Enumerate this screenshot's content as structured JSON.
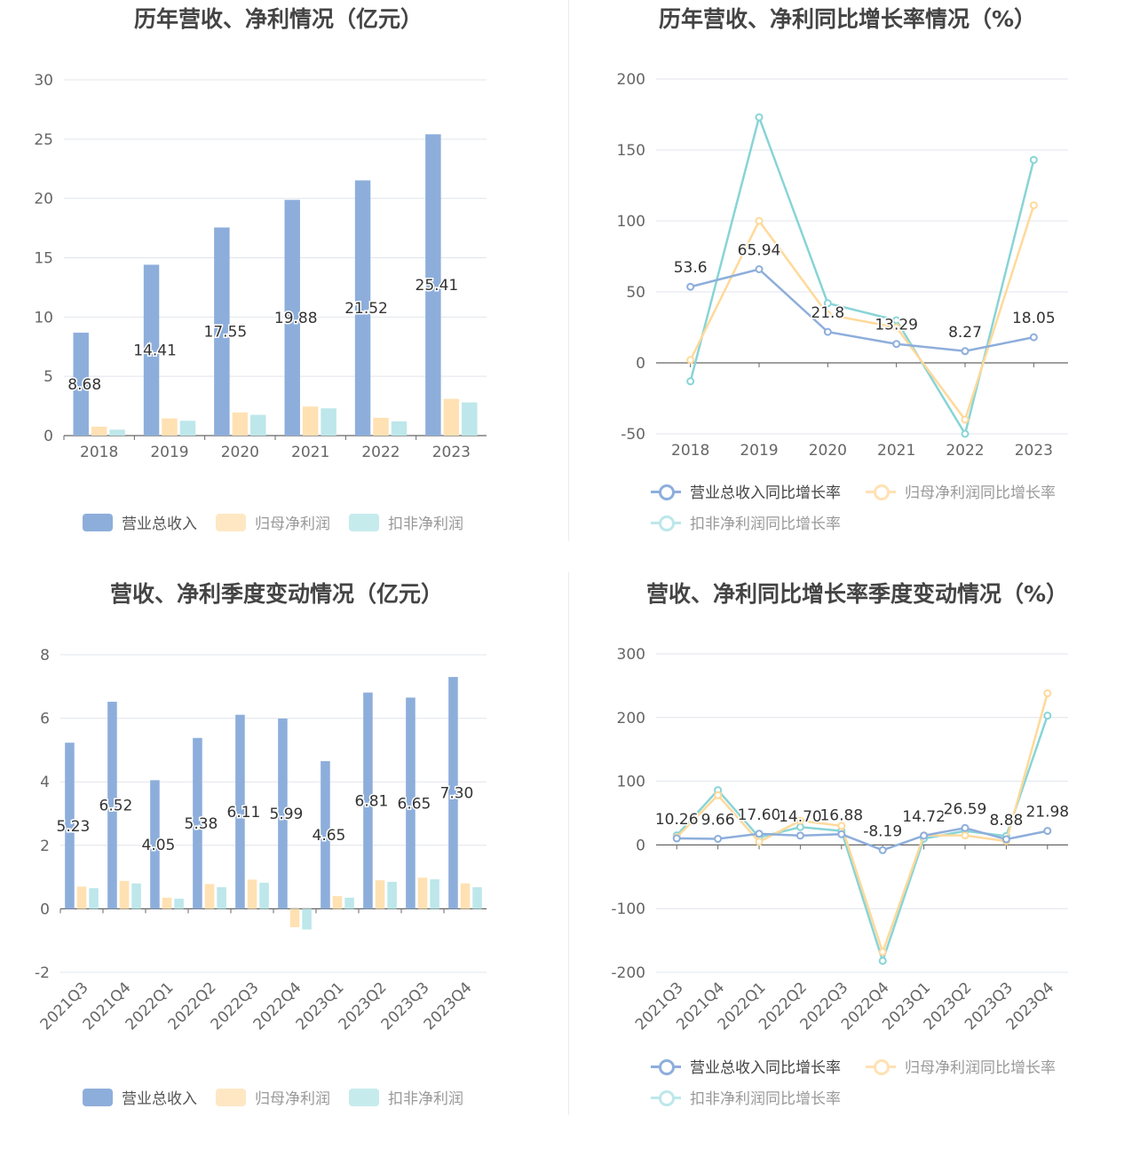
{
  "colors": {
    "revenue": "#8DAEDB",
    "net_profit": "#FFE1B3",
    "deducted_profit": "#BDE7EA",
    "revenue_line": "#8DAEDB",
    "net_line": "#FFD99A",
    "deducted_line": "#88D4D6"
  },
  "legend_bar": [
    "营业总收入",
    "归母净利润",
    "扣非净利润"
  ],
  "legend_line": [
    "营业总收入同比增长率",
    "归母净利润同比增长率",
    "扣非净利润同比增长率"
  ],
  "chart_data": [
    {
      "id": "annual_amount",
      "type": "bar",
      "title": "历年营收、净利情况（亿元）",
      "categories": [
        "2018",
        "2019",
        "2020",
        "2021",
        "2022",
        "2023"
      ],
      "series": [
        {
          "name": "营业总收入",
          "values": [
            8.68,
            14.41,
            17.55,
            19.88,
            21.52,
            25.41
          ]
        },
        {
          "name": "归母净利润",
          "values": [
            0.75,
            1.45,
            1.95,
            2.45,
            1.5,
            3.1
          ]
        },
        {
          "name": "扣非净利润",
          "values": [
            0.5,
            1.25,
            1.75,
            2.3,
            1.2,
            2.8
          ]
        }
      ],
      "labels": [
        "8.68",
        "14.41",
        "17.55",
        "19.88",
        "21.52",
        "25.41"
      ],
      "ylim": [
        0,
        30
      ],
      "yticks": [
        0,
        5,
        10,
        15,
        20,
        25,
        30
      ],
      "grid": true,
      "legend_position": "bottom"
    },
    {
      "id": "annual_growth",
      "type": "line",
      "title": "历年营收、净利同比增长率情况（%）",
      "categories": [
        "2018",
        "2019",
        "2020",
        "2021",
        "2022",
        "2023"
      ],
      "series": [
        {
          "name": "营业总收入同比增长率",
          "values": [
            53.6,
            65.94,
            21.8,
            13.29,
            8.27,
            18.05
          ]
        },
        {
          "name": "归母净利润同比增长率",
          "values": [
            2,
            100,
            34,
            25,
            -40,
            111
          ]
        },
        {
          "name": "扣非净利润同比增长率",
          "values": [
            -13,
            173,
            42,
            30,
            -50,
            143
          ]
        }
      ],
      "labels": [
        "53.6",
        "65.94",
        "21.8",
        "13.29",
        "8.27",
        "18.05"
      ],
      "ylim": [
        -50,
        200
      ],
      "yticks": [
        -50,
        0,
        50,
        100,
        150,
        200
      ],
      "grid": true,
      "legend_position": "bottom"
    },
    {
      "id": "quarterly_amount",
      "type": "bar",
      "title": "营收、净利季度变动情况（亿元）",
      "categories": [
        "2021Q3",
        "2021Q4",
        "2022Q1",
        "2022Q2",
        "2022Q3",
        "2022Q4",
        "2023Q1",
        "2023Q2",
        "2023Q3",
        "2023Q4"
      ],
      "series": [
        {
          "name": "营业总收入",
          "values": [
            5.23,
            6.52,
            4.05,
            5.38,
            6.11,
            5.99,
            4.65,
            6.81,
            6.65,
            7.3
          ]
        },
        {
          "name": "归母净利润",
          "values": [
            0.7,
            0.88,
            0.35,
            0.78,
            0.92,
            -0.58,
            0.4,
            0.9,
            0.98,
            0.8
          ]
        },
        {
          "name": "扣非净利润",
          "values": [
            0.65,
            0.8,
            0.32,
            0.68,
            0.82,
            -0.65,
            0.35,
            0.85,
            0.93,
            0.68
          ]
        }
      ],
      "labels": [
        "5.23",
        "6.52",
        "4.05",
        "5.38",
        "6.11",
        "5.99",
        "4.65",
        "6.81",
        "6.65",
        "7.30"
      ],
      "ylim": [
        -2,
        8
      ],
      "yticks": [
        -2,
        0,
        2,
        4,
        6,
        8
      ],
      "grid": true,
      "legend_position": "bottom"
    },
    {
      "id": "quarterly_growth",
      "type": "line",
      "title": "营收、净利同比增长率季度变动情况（%）",
      "categories": [
        "2021Q3",
        "2021Q4",
        "2022Q1",
        "2022Q2",
        "2022Q3",
        "2022Q4",
        "2023Q1",
        "2023Q2",
        "2023Q3",
        "2023Q4"
      ],
      "series": [
        {
          "name": "营业总收入同比增长率",
          "values": [
            10.26,
            9.66,
            17.6,
            14.7,
            16.88,
            -8.19,
            14.72,
            26.59,
            8.88,
            21.98
          ]
        },
        {
          "name": "归母净利润同比增长率",
          "values": [
            12,
            78,
            5,
            38,
            30,
            -168,
            15,
            15,
            6,
            238
          ]
        },
        {
          "name": "扣非净利润同比增长率",
          "values": [
            15,
            86,
            12,
            28,
            22,
            -182,
            10,
            22,
            14,
            203
          ]
        }
      ],
      "labels": [
        "10.26",
        "9.66",
        "17.60",
        "14.70",
        "16.88",
        "-8.19",
        "14.72",
        "26.59",
        "8.88",
        "21.98"
      ],
      "ylim": [
        -200,
        300
      ],
      "yticks": [
        -200,
        -100,
        0,
        100,
        200,
        300
      ],
      "grid": true,
      "legend_position": "bottom"
    }
  ]
}
